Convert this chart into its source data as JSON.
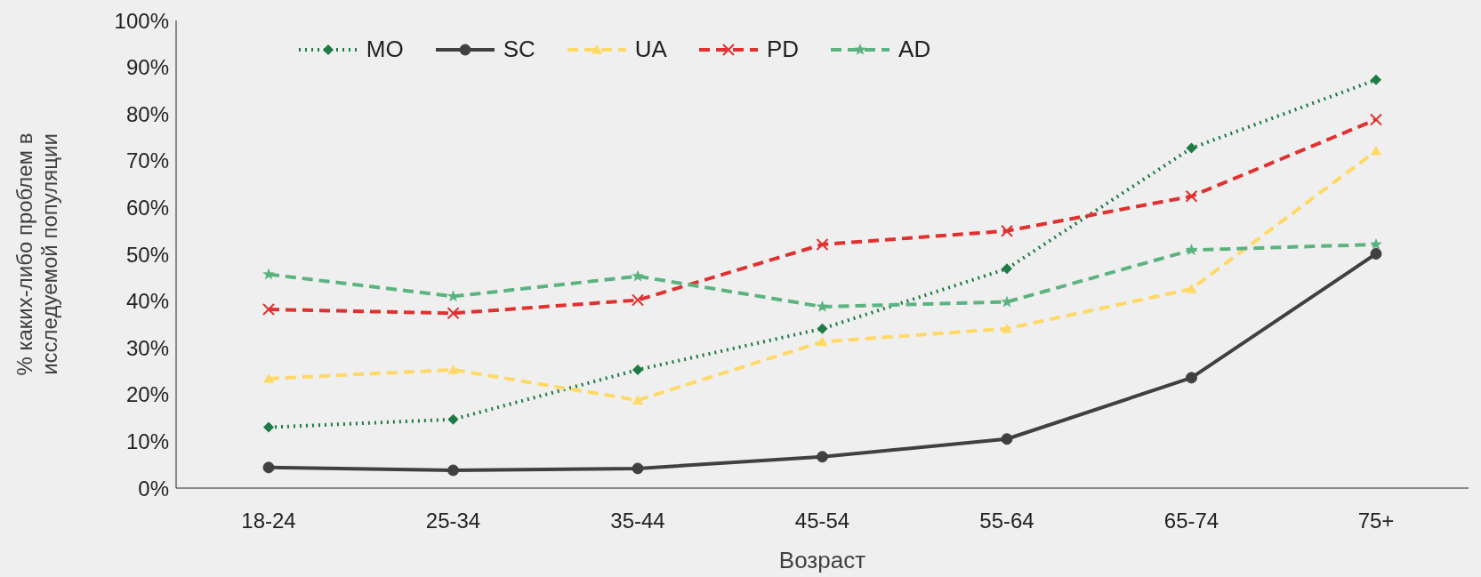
{
  "chart_data": {
    "type": "line",
    "xlabel": "Возраст",
    "ylabel": "% каких-либо проблем в исследуемой популяции",
    "categories": [
      "18-24",
      "25-34",
      "35-44",
      "45-54",
      "55-64",
      "65-74",
      "75+"
    ],
    "series": [
      {
        "name": "MO",
        "color": "#1e7b45",
        "marker": "diamond",
        "line_style": "dotted",
        "values": [
          13,
          14.7,
          25.3,
          34.1,
          46.9,
          72.7,
          87.3
        ]
      },
      {
        "name": "SC",
        "color": "#404040",
        "marker": "circle",
        "line_style": "solid",
        "values": [
          4.4,
          3.8,
          4.2,
          6.7,
          10.5,
          23.6,
          50.1
        ]
      },
      {
        "name": "UA",
        "color": "#ffd966",
        "marker": "triangle",
        "line_style": "dashed",
        "values": [
          23.4,
          25.3,
          18.8,
          31.3,
          34.1,
          42.6,
          72.1
        ]
      },
      {
        "name": "PD",
        "color": "#e03030",
        "marker": "cross",
        "line_style": "dashed",
        "values": [
          38.2,
          37.4,
          40.2,
          52.1,
          55,
          62.4,
          78.8
        ]
      },
      {
        "name": "AD",
        "color": "#5bb37f",
        "marker": "star",
        "line_style": "dashed",
        "values": [
          45.7,
          41,
          45.3,
          38.8,
          39.8,
          50.9,
          52.1
        ]
      }
    ],
    "ylim": [
      0,
      100
    ],
    "yticks": [
      {
        "value": 0,
        "label": "0%"
      },
      {
        "value": 10,
        "label": "10%"
      },
      {
        "value": 20,
        "label": "20%"
      },
      {
        "value": 30,
        "label": "30%"
      },
      {
        "value": 40,
        "label": "40%"
      },
      {
        "value": 50,
        "label": "50%"
      },
      {
        "value": 60,
        "label": "60%"
      },
      {
        "value": 70,
        "label": "70%"
      },
      {
        "value": 80,
        "label": "80%"
      },
      {
        "value": 90,
        "label": "90%"
      },
      {
        "value": 100,
        "label": "100%"
      }
    ],
    "grid": false,
    "legend": "top"
  }
}
